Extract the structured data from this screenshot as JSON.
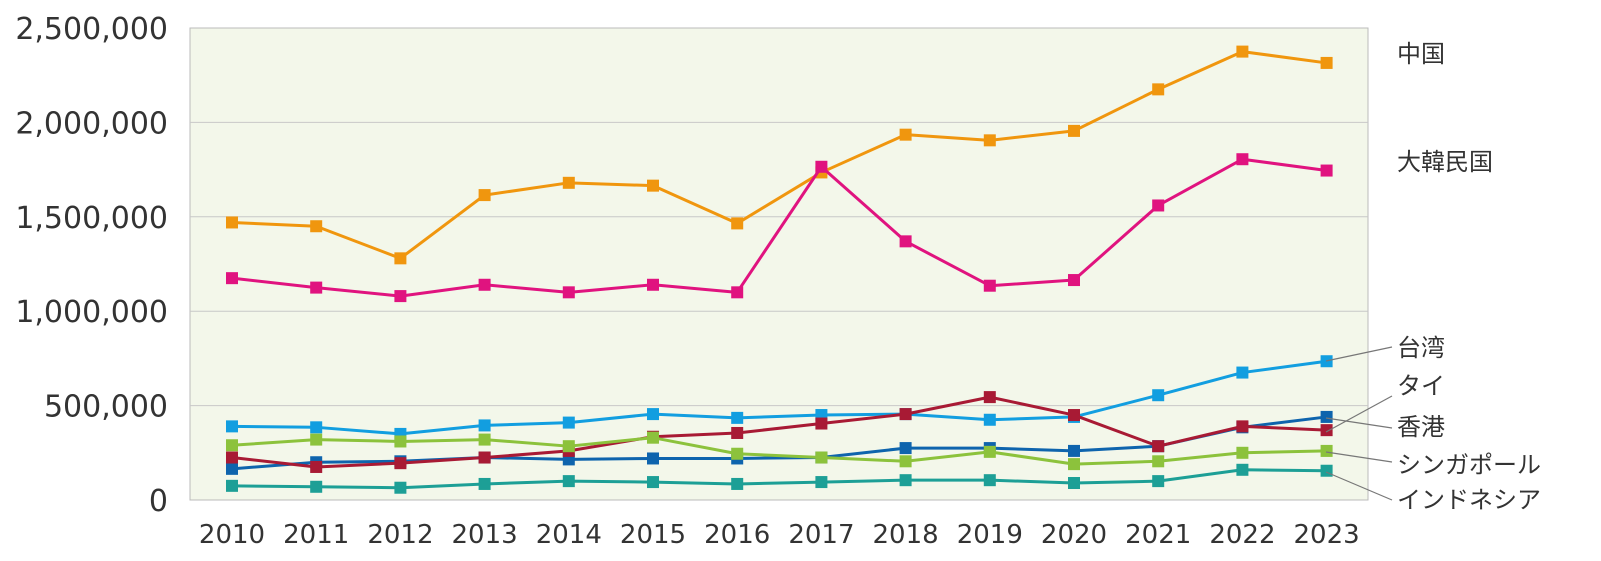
{
  "chart_data": {
    "type": "line",
    "title": "",
    "xlabel": "",
    "ylabel": "",
    "ylim": [
      0,
      2500000
    ],
    "yticks": [
      0,
      500000,
      1000000,
      1500000,
      2000000,
      2500000
    ],
    "ytick_labels": [
      "0",
      "500,000",
      "1,000,000",
      "1,500,000",
      "2,000,000",
      "2,500,000"
    ],
    "grid": "horizontal",
    "legend": "right",
    "plot_background": "#f3f7ea",
    "categories": [
      "2010",
      "2011",
      "2012",
      "2013",
      "2014",
      "2015",
      "2016",
      "2017",
      "2018",
      "2019",
      "2020",
      "2021",
      "2022",
      "2023"
    ],
    "series": [
      {
        "name": "中国",
        "color": "#f0960e",
        "values": [
          1470000,
          1450000,
          1280000,
          1615000,
          1680000,
          1665000,
          1465000,
          1735000,
          1935000,
          1905000,
          1955000,
          2175000,
          2375000,
          2315000
        ]
      },
      {
        "name": "大韓民国",
        "color": "#e0137f",
        "values": [
          1175000,
          1125000,
          1080000,
          1140000,
          1100000,
          1140000,
          1100000,
          1765000,
          1370000,
          1135000,
          1165000,
          1560000,
          1805000,
          1745000
        ]
      },
      {
        "name": "台湾",
        "color": "#129ee0",
        "values": [
          390000,
          385000,
          350000,
          395000,
          410000,
          455000,
          435000,
          450000,
          455000,
          425000,
          440000,
          555000,
          675000,
          735000
        ]
      },
      {
        "name": "タイ",
        "color": "#0e64ad",
        "values": [
          165000,
          200000,
          205000,
          225000,
          215000,
          220000,
          220000,
          225000,
          275000,
          275000,
          260000,
          285000,
          385000,
          440000
        ]
      },
      {
        "name": "香港",
        "color": "#a81a34",
        "values": [
          225000,
          175000,
          195000,
          225000,
          260000,
          335000,
          355000,
          405000,
          455000,
          545000,
          450000,
          285000,
          390000,
          370000
        ]
      },
      {
        "name": "シンガポール",
        "color": "#8cc23c",
        "values": [
          290000,
          320000,
          310000,
          320000,
          285000,
          330000,
          245000,
          225000,
          205000,
          255000,
          190000,
          205000,
          250000,
          260000
        ]
      },
      {
        "name": "インドネシア",
        "color": "#1d9f96",
        "values": [
          75000,
          70000,
          65000,
          85000,
          100000,
          95000,
          85000,
          95000,
          105000,
          105000,
          90000,
          100000,
          160000,
          155000
        ]
      }
    ]
  }
}
